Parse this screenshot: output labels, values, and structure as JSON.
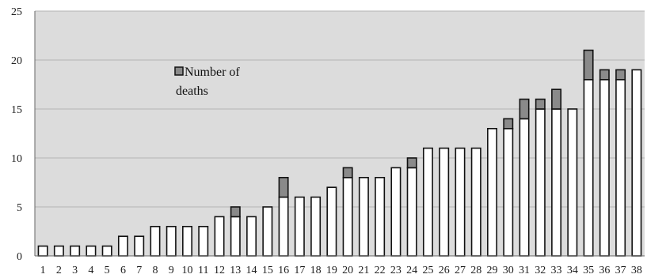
{
  "chart_data": {
    "type": "bar",
    "stacked": true,
    "title": "",
    "xlabel": "",
    "ylabel": "",
    "categories": [
      "1",
      "2",
      "3",
      "4",
      "5",
      "6",
      "7",
      "8",
      "9",
      "10",
      "11",
      "12",
      "13",
      "14",
      "15",
      "16",
      "17",
      "18",
      "19",
      "20",
      "21",
      "22",
      "23",
      "24",
      "25",
      "26",
      "27",
      "28",
      "29",
      "30",
      "31",
      "32",
      "33",
      "34",
      "35",
      "36",
      "37",
      "38"
    ],
    "series": [
      {
        "values": [
          1,
          1,
          1,
          1,
          1,
          2,
          2,
          3,
          3,
          3,
          3,
          4,
          4,
          4,
          5,
          6,
          6,
          6,
          7,
          8,
          8,
          8,
          9,
          9,
          11,
          11,
          11,
          11,
          13,
          13,
          14,
          15,
          15,
          15,
          18,
          18,
          18,
          19
        ],
        "color": "#ffffff"
      },
      {
        "name": "Number of deaths",
        "values": [
          0,
          0,
          0,
          0,
          0,
          0,
          0,
          0,
          0,
          0,
          0,
          0,
          1,
          0,
          0,
          2,
          0,
          0,
          0,
          1,
          0,
          0,
          0,
          1,
          0,
          0,
          0,
          0,
          0,
          1,
          2,
          1,
          2,
          0,
          3,
          1,
          1,
          0
        ],
        "color": "#8a8a8a"
      }
    ],
    "ylim": [
      0,
      25
    ],
    "yticks": [
      0,
      5,
      10,
      15,
      20,
      25
    ],
    "grid": true,
    "plot_background": "#dcdcdc",
    "legend": {
      "placement": "upper-middle-left"
    }
  }
}
